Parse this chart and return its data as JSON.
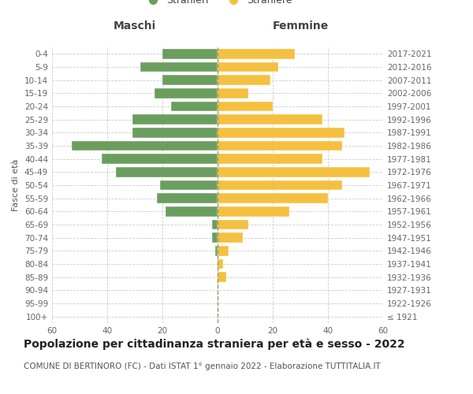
{
  "age_groups": [
    "100+",
    "95-99",
    "90-94",
    "85-89",
    "80-84",
    "75-79",
    "70-74",
    "65-69",
    "60-64",
    "55-59",
    "50-54",
    "45-49",
    "40-44",
    "35-39",
    "30-34",
    "25-29",
    "20-24",
    "15-19",
    "10-14",
    "5-9",
    "0-4"
  ],
  "birth_years": [
    "≤ 1921",
    "1922-1926",
    "1927-1931",
    "1932-1936",
    "1937-1941",
    "1942-1946",
    "1947-1951",
    "1952-1956",
    "1957-1961",
    "1962-1966",
    "1967-1971",
    "1972-1976",
    "1977-1981",
    "1982-1986",
    "1987-1991",
    "1992-1996",
    "1997-2001",
    "2002-2006",
    "2007-2011",
    "2012-2016",
    "2017-2021"
  ],
  "maschi": [
    0,
    0,
    0,
    0,
    0,
    1,
    2,
    2,
    19,
    22,
    21,
    37,
    42,
    53,
    31,
    31,
    17,
    23,
    20,
    28,
    20
  ],
  "femmine": [
    0,
    0,
    0,
    3,
    2,
    4,
    9,
    11,
    26,
    40,
    45,
    55,
    38,
    45,
    46,
    38,
    20,
    11,
    19,
    22,
    28
  ],
  "male_color": "#6b9e5e",
  "female_color": "#f5c040",
  "background_color": "#ffffff",
  "grid_color": "#cccccc",
  "title": "Popolazione per cittadinanza straniera per età e sesso - 2022",
  "subtitle": "COMUNE DI BERTINORO (FC) - Dati ISTAT 1° gennaio 2022 - Elaborazione TUTTITALIA.IT",
  "ylabel_left": "Fasce di età",
  "xlabel_left": "Maschi",
  "xlabel_right": "Femmine",
  "xlim": 60,
  "title_fontsize": 10,
  "subtitle_fontsize": 7.5,
  "header_fontsize": 10,
  "axis_label_fontsize": 8,
  "tick_fontsize": 7.5,
  "legend_fontsize": 9
}
